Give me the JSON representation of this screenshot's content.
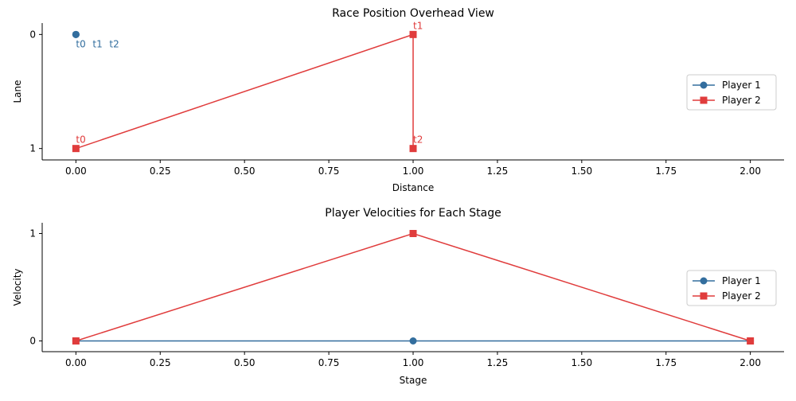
{
  "colors": {
    "player1": "#336e9e",
    "player2": "#e03c3c",
    "axis": "#000000",
    "legend_border": "#cccccc"
  },
  "chart_data": [
    {
      "type": "line",
      "title": "Race Position Overhead View",
      "xlabel": "Distance",
      "ylabel": "Lane",
      "xlim": [
        -0.1,
        2.1
      ],
      "ylim": [
        1.1,
        -0.1
      ],
      "y_inverted": true,
      "xticks": [
        0.0,
        0.25,
        0.5,
        0.75,
        1.0,
        1.25,
        1.5,
        1.75,
        2.0
      ],
      "xtick_labels": [
        "0.00",
        "0.25",
        "0.50",
        "0.75",
        "1.00",
        "1.25",
        "1.50",
        "1.75",
        "2.00"
      ],
      "yticks": [
        0,
        1
      ],
      "ytick_labels": [
        "0",
        "1"
      ],
      "legend": "center-right",
      "series": [
        {
          "name": "Player 1",
          "marker": "circle",
          "color_key": "player1",
          "x": [
            0,
            0,
            0
          ],
          "y": [
            0,
            0,
            0
          ],
          "annotations": [
            {
              "text": "t0",
              "x": 0,
              "y": 0
            },
            {
              "text": "t1",
              "x": 0,
              "y": 0
            },
            {
              "text": "t2",
              "x": 0,
              "y": 0
            }
          ]
        },
        {
          "name": "Player 2",
          "marker": "square",
          "color_key": "player2",
          "x": [
            0,
            1,
            1
          ],
          "y": [
            1,
            0,
            1
          ],
          "annotations": [
            {
              "text": "t0",
              "x": 0,
              "y": 1
            },
            {
              "text": "t1",
              "x": 1,
              "y": 0
            },
            {
              "text": "t2",
              "x": 1,
              "y": 1
            }
          ]
        }
      ]
    },
    {
      "type": "line",
      "title": "Player Velocities for Each Stage",
      "xlabel": "Stage",
      "ylabel": "Velocity",
      "xlim": [
        -0.1,
        2.1
      ],
      "ylim": [
        -0.1,
        1.1
      ],
      "y_inverted": false,
      "xticks": [
        0.0,
        0.25,
        0.5,
        0.75,
        1.0,
        1.25,
        1.5,
        1.75,
        2.0
      ],
      "xtick_labels": [
        "0.00",
        "0.25",
        "0.50",
        "0.75",
        "1.00",
        "1.25",
        "1.50",
        "1.75",
        "2.00"
      ],
      "yticks": [
        0,
        1
      ],
      "ytick_labels": [
        "0",
        "1"
      ],
      "legend": "center-right",
      "series": [
        {
          "name": "Player 1",
          "marker": "circle",
          "color_key": "player1",
          "x": [
            0,
            1,
            2
          ],
          "y": [
            0,
            0,
            0
          ],
          "annotations": []
        },
        {
          "name": "Player 2",
          "marker": "square",
          "color_key": "player2",
          "x": [
            0,
            1,
            2
          ],
          "y": [
            0,
            1,
            0
          ],
          "annotations": []
        }
      ]
    }
  ]
}
